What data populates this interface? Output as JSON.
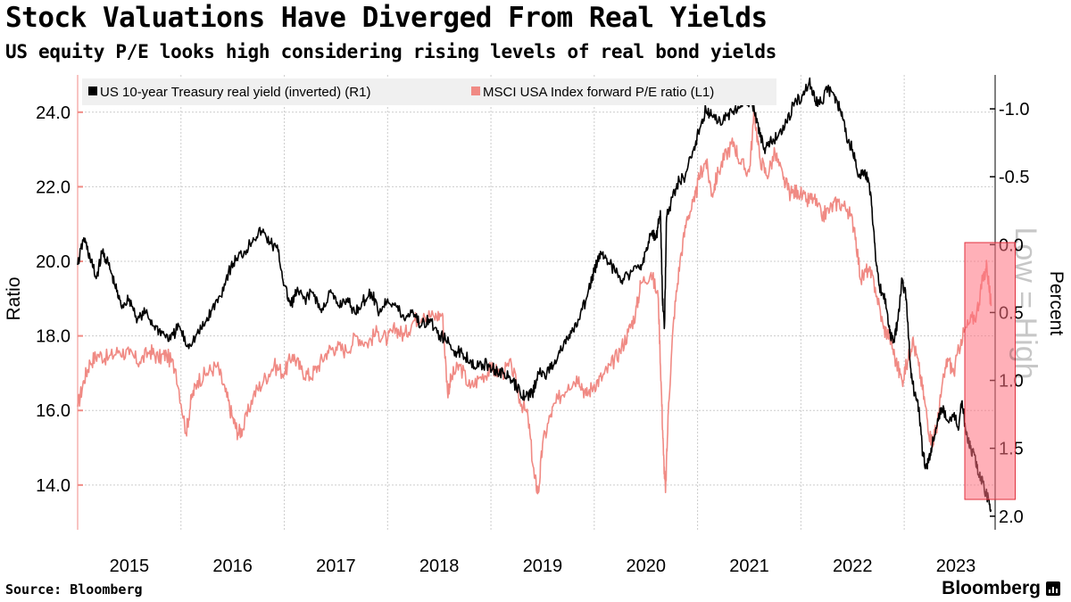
{
  "header": {
    "title": "Stock Valuations Have Diverged From Real Yields",
    "subtitle": "US equity P/E looks high considering rising levels of real bond yields"
  },
  "footer": {
    "source": "Source: Bloomberg",
    "brand": "Bloomberg"
  },
  "chart_data": {
    "type": "line",
    "legend": [
      {
        "label": "US 10-year Treasury real yield (inverted) (R1)",
        "color": "#000000"
      },
      {
        "label": "MSCI USA Index forward P/E ratio (L1)",
        "color": "#f08a84"
      }
    ],
    "legend_placement": "top-left",
    "y_left": {
      "label": "Ratio",
      "range": [
        12.8,
        25.0
      ],
      "ticks": [
        "14.0",
        "16.0",
        "18.0",
        "20.0",
        "22.0",
        "24.0"
      ],
      "tick_values": [
        14,
        16,
        18,
        20,
        22,
        24
      ]
    },
    "y_right": {
      "label": "Percent",
      "inverted": true,
      "range": [
        -1.25,
        2.1
      ],
      "ticks": [
        "-1.0",
        "-0.5",
        "0.0",
        "0.5",
        "1.0",
        "1.5",
        "2.0"
      ],
      "tick_values": [
        -1.0,
        -0.5,
        0.0,
        0.5,
        1.0,
        1.5,
        2.0
      ]
    },
    "x": {
      "range": [
        2014.5,
        2023.38
      ],
      "tick_labels": [
        "2015",
        "2016",
        "2017",
        "2018",
        "2019",
        "2020",
        "2021",
        "2022",
        "2023"
      ],
      "tick_positions": [
        2015,
        2016,
        2017,
        2018,
        2019,
        2020,
        2021,
        2022,
        2023
      ],
      "gridlines": [
        2015.5,
        2016.5,
        2017.5,
        2018.5,
        2019.5,
        2020.5,
        2021.5,
        2022.5
      ]
    },
    "annotation": {
      "text": "Low = High",
      "axis": "right"
    },
    "highlight": {
      "x_range": [
        2023.0,
        2023.35
      ],
      "description": "recent period"
    },
    "series": [
      {
        "name": "MSCI USA Index forward P/E ratio (L1)",
        "axis": "left",
        "color": "#f08a84",
        "points": [
          [
            2014.5,
            16.1
          ],
          [
            2014.56,
            16.8
          ],
          [
            2014.62,
            17.3
          ],
          [
            2014.7,
            17.5
          ],
          [
            2014.8,
            17.4
          ],
          [
            2014.9,
            17.6
          ],
          [
            2015.0,
            17.5
          ],
          [
            2015.1,
            17.3
          ],
          [
            2015.2,
            17.6
          ],
          [
            2015.28,
            17.4
          ],
          [
            2015.36,
            17.5
          ],
          [
            2015.45,
            17.1
          ],
          [
            2015.55,
            15.4
          ],
          [
            2015.6,
            16.3
          ],
          [
            2015.66,
            16.8
          ],
          [
            2015.75,
            17.0
          ],
          [
            2015.85,
            17.2
          ],
          [
            2015.93,
            16.5
          ],
          [
            2016.0,
            15.8
          ],
          [
            2016.05,
            15.4
          ],
          [
            2016.1,
            15.5
          ],
          [
            2016.2,
            16.4
          ],
          [
            2016.3,
            16.8
          ],
          [
            2016.4,
            17.2
          ],
          [
            2016.5,
            17.0
          ],
          [
            2016.58,
            17.5
          ],
          [
            2016.66,
            17.1
          ],
          [
            2016.75,
            16.9
          ],
          [
            2016.83,
            17.2
          ],
          [
            2016.92,
            17.6
          ],
          [
            2017.0,
            17.7
          ],
          [
            2017.1,
            17.6
          ],
          [
            2017.2,
            18.0
          ],
          [
            2017.3,
            17.8
          ],
          [
            2017.4,
            18.1
          ],
          [
            2017.5,
            17.9
          ],
          [
            2017.58,
            18.2
          ],
          [
            2017.66,
            18.0
          ],
          [
            2017.75,
            18.4
          ],
          [
            2017.85,
            18.6
          ],
          [
            2017.95,
            18.5
          ],
          [
            2018.03,
            18.6
          ],
          [
            2018.08,
            16.5
          ],
          [
            2018.12,
            16.9
          ],
          [
            2018.2,
            17.2
          ],
          [
            2018.3,
            16.6
          ],
          [
            2018.4,
            16.9
          ],
          [
            2018.5,
            17.1
          ],
          [
            2018.6,
            17.0
          ],
          [
            2018.7,
            17.2
          ],
          [
            2018.78,
            16.3
          ],
          [
            2018.86,
            15.8
          ],
          [
            2018.92,
            14.2
          ],
          [
            2018.96,
            13.8
          ],
          [
            2019.0,
            15.1
          ],
          [
            2019.08,
            15.9
          ],
          [
            2019.15,
            16.3
          ],
          [
            2019.25,
            16.7
          ],
          [
            2019.35,
            16.9
          ],
          [
            2019.42,
            16.4
          ],
          [
            2019.5,
            16.7
          ],
          [
            2019.58,
            16.9
          ],
          [
            2019.66,
            17.2
          ],
          [
            2019.75,
            17.6
          ],
          [
            2019.83,
            18.1
          ],
          [
            2019.9,
            18.6
          ],
          [
            2019.95,
            19.4
          ],
          [
            2020.05,
            19.7
          ],
          [
            2020.12,
            19.0
          ],
          [
            2020.15,
            16.5
          ],
          [
            2020.17,
            14.8
          ],
          [
            2020.19,
            13.8
          ],
          [
            2020.22,
            16.2
          ],
          [
            2020.27,
            18.5
          ],
          [
            2020.33,
            20.0
          ],
          [
            2020.4,
            21.2
          ],
          [
            2020.47,
            21.6
          ],
          [
            2020.52,
            22.3
          ],
          [
            2020.58,
            22.7
          ],
          [
            2020.64,
            21.8
          ],
          [
            2020.7,
            22.4
          ],
          [
            2020.78,
            22.9
          ],
          [
            2020.85,
            23.2
          ],
          [
            2020.92,
            22.6
          ],
          [
            2021.0,
            22.4
          ],
          [
            2021.05,
            24.0
          ],
          [
            2021.1,
            22.8
          ],
          [
            2021.17,
            22.3
          ],
          [
            2021.25,
            22.9
          ],
          [
            2021.33,
            22.2
          ],
          [
            2021.4,
            21.8
          ],
          [
            2021.47,
            21.9
          ],
          [
            2021.55,
            21.6
          ],
          [
            2021.62,
            21.7
          ],
          [
            2021.7,
            21.2
          ],
          [
            2021.78,
            21.4
          ],
          [
            2021.86,
            21.6
          ],
          [
            2021.95,
            21.4
          ],
          [
            2022.02,
            20.9
          ],
          [
            2022.08,
            19.5
          ],
          [
            2022.15,
            19.8
          ],
          [
            2022.22,
            19.3
          ],
          [
            2022.3,
            18.2
          ],
          [
            2022.36,
            18.0
          ],
          [
            2022.42,
            17.3
          ],
          [
            2022.48,
            16.8
          ],
          [
            2022.54,
            17.4
          ],
          [
            2022.58,
            17.9
          ],
          [
            2022.64,
            17.2
          ],
          [
            2022.7,
            16.2
          ],
          [
            2022.75,
            15.3
          ],
          [
            2022.78,
            15.2
          ],
          [
            2022.82,
            15.6
          ],
          [
            2022.86,
            16.5
          ],
          [
            2022.92,
            17.4
          ],
          [
            2022.98,
            17.0
          ],
          [
            2023.05,
            17.9
          ],
          [
            2023.12,
            18.3
          ],
          [
            2023.2,
            18.6
          ],
          [
            2023.26,
            19.5
          ],
          [
            2023.3,
            19.9
          ],
          [
            2023.34,
            18.8
          ]
        ]
      },
      {
        "name": "US 10-year Treasury real yield (inverted) (R1)",
        "axis": "right",
        "color": "#000000",
        "points": [
          [
            2014.5,
            0.15
          ],
          [
            2014.56,
            -0.05
          ],
          [
            2014.62,
            0.1
          ],
          [
            2014.68,
            0.25
          ],
          [
            2014.74,
            0.05
          ],
          [
            2014.8,
            0.15
          ],
          [
            2014.86,
            0.3
          ],
          [
            2014.92,
            0.45
          ],
          [
            2015.0,
            0.4
          ],
          [
            2015.08,
            0.55
          ],
          [
            2015.16,
            0.5
          ],
          [
            2015.24,
            0.6
          ],
          [
            2015.32,
            0.65
          ],
          [
            2015.4,
            0.7
          ],
          [
            2015.48,
            0.6
          ],
          [
            2015.56,
            0.75
          ],
          [
            2015.64,
            0.68
          ],
          [
            2015.72,
            0.6
          ],
          [
            2015.8,
            0.48
          ],
          [
            2015.88,
            0.38
          ],
          [
            2015.96,
            0.2
          ],
          [
            2016.04,
            0.1
          ],
          [
            2016.12,
            0.05
          ],
          [
            2016.2,
            -0.05
          ],
          [
            2016.28,
            -0.1
          ],
          [
            2016.36,
            -0.02
          ],
          [
            2016.44,
            0.05
          ],
          [
            2016.5,
            0.3
          ],
          [
            2016.56,
            0.45
          ],
          [
            2016.62,
            0.35
          ],
          [
            2016.7,
            0.4
          ],
          [
            2016.78,
            0.35
          ],
          [
            2016.86,
            0.5
          ],
          [
            2016.94,
            0.35
          ],
          [
            2017.02,
            0.45
          ],
          [
            2017.1,
            0.4
          ],
          [
            2017.18,
            0.5
          ],
          [
            2017.26,
            0.42
          ],
          [
            2017.34,
            0.35
          ],
          [
            2017.42,
            0.5
          ],
          [
            2017.5,
            0.4
          ],
          [
            2017.58,
            0.45
          ],
          [
            2017.66,
            0.55
          ],
          [
            2017.74,
            0.48
          ],
          [
            2017.82,
            0.6
          ],
          [
            2017.9,
            0.55
          ],
          [
            2017.98,
            0.65
          ],
          [
            2018.06,
            0.7
          ],
          [
            2018.14,
            0.78
          ],
          [
            2018.22,
            0.8
          ],
          [
            2018.3,
            0.85
          ],
          [
            2018.38,
            0.9
          ],
          [
            2018.46,
            0.88
          ],
          [
            2018.54,
            0.92
          ],
          [
            2018.62,
            0.95
          ],
          [
            2018.7,
            1.0
          ],
          [
            2018.78,
            1.08
          ],
          [
            2018.84,
            1.12
          ],
          [
            2018.9,
            1.1
          ],
          [
            2018.96,
            0.95
          ],
          [
            2019.04,
            0.95
          ],
          [
            2019.12,
            0.85
          ],
          [
            2019.2,
            0.75
          ],
          [
            2019.28,
            0.65
          ],
          [
            2019.36,
            0.55
          ],
          [
            2019.44,
            0.35
          ],
          [
            2019.5,
            0.2
          ],
          [
            2019.56,
            0.05
          ],
          [
            2019.62,
            0.1
          ],
          [
            2019.7,
            0.2
          ],
          [
            2019.78,
            0.25
          ],
          [
            2019.86,
            0.2
          ],
          [
            2019.94,
            0.18
          ],
          [
            2020.0,
            0.05
          ],
          [
            2020.06,
            -0.1
          ],
          [
            2020.1,
            -0.05
          ],
          [
            2020.14,
            -0.25
          ],
          [
            2020.16,
            0.4
          ],
          [
            2020.18,
            0.6
          ],
          [
            2020.2,
            -0.2
          ],
          [
            2020.24,
            -0.3
          ],
          [
            2020.3,
            -0.45
          ],
          [
            2020.38,
            -0.5
          ],
          [
            2020.46,
            -0.7
          ],
          [
            2020.52,
            -0.85
          ],
          [
            2020.58,
            -1.0
          ],
          [
            2020.64,
            -0.95
          ],
          [
            2020.7,
            -0.9
          ],
          [
            2020.78,
            -0.95
          ],
          [
            2020.86,
            -1.0
          ],
          [
            2020.94,
            -1.05
          ],
          [
            2021.02,
            -1.05
          ],
          [
            2021.08,
            -0.9
          ],
          [
            2021.14,
            -0.7
          ],
          [
            2021.2,
            -0.75
          ],
          [
            2021.28,
            -0.8
          ],
          [
            2021.36,
            -0.9
          ],
          [
            2021.44,
            -1.05
          ],
          [
            2021.52,
            -1.1
          ],
          [
            2021.58,
            -1.2
          ],
          [
            2021.64,
            -1.05
          ],
          [
            2021.7,
            -1.05
          ],
          [
            2021.76,
            -1.15
          ],
          [
            2021.82,
            -1.1
          ],
          [
            2021.88,
            -1.0
          ],
          [
            2021.94,
            -0.8
          ],
          [
            2022.0,
            -0.7
          ],
          [
            2022.06,
            -0.5
          ],
          [
            2022.12,
            -0.55
          ],
          [
            2022.18,
            -0.35
          ],
          [
            2022.22,
            0.05
          ],
          [
            2022.26,
            0.3
          ],
          [
            2022.32,
            0.4
          ],
          [
            2022.36,
            0.65
          ],
          [
            2022.4,
            0.7
          ],
          [
            2022.44,
            0.55
          ],
          [
            2022.48,
            0.25
          ],
          [
            2022.52,
            0.4
          ],
          [
            2022.56,
            0.9
          ],
          [
            2022.6,
            1.1
          ],
          [
            2022.64,
            1.2
          ],
          [
            2022.68,
            1.55
          ],
          [
            2022.72,
            1.65
          ],
          [
            2022.76,
            1.5
          ],
          [
            2022.8,
            1.4
          ],
          [
            2022.86,
            1.2
          ],
          [
            2022.92,
            1.3
          ],
          [
            2022.98,
            1.25
          ],
          [
            2023.02,
            1.35
          ],
          [
            2023.06,
            1.15
          ],
          [
            2023.1,
            1.4
          ],
          [
            2023.14,
            1.5
          ],
          [
            2023.18,
            1.55
          ],
          [
            2023.22,
            1.7
          ],
          [
            2023.26,
            1.75
          ],
          [
            2023.3,
            1.85
          ],
          [
            2023.34,
            1.95
          ]
        ]
      }
    ]
  }
}
